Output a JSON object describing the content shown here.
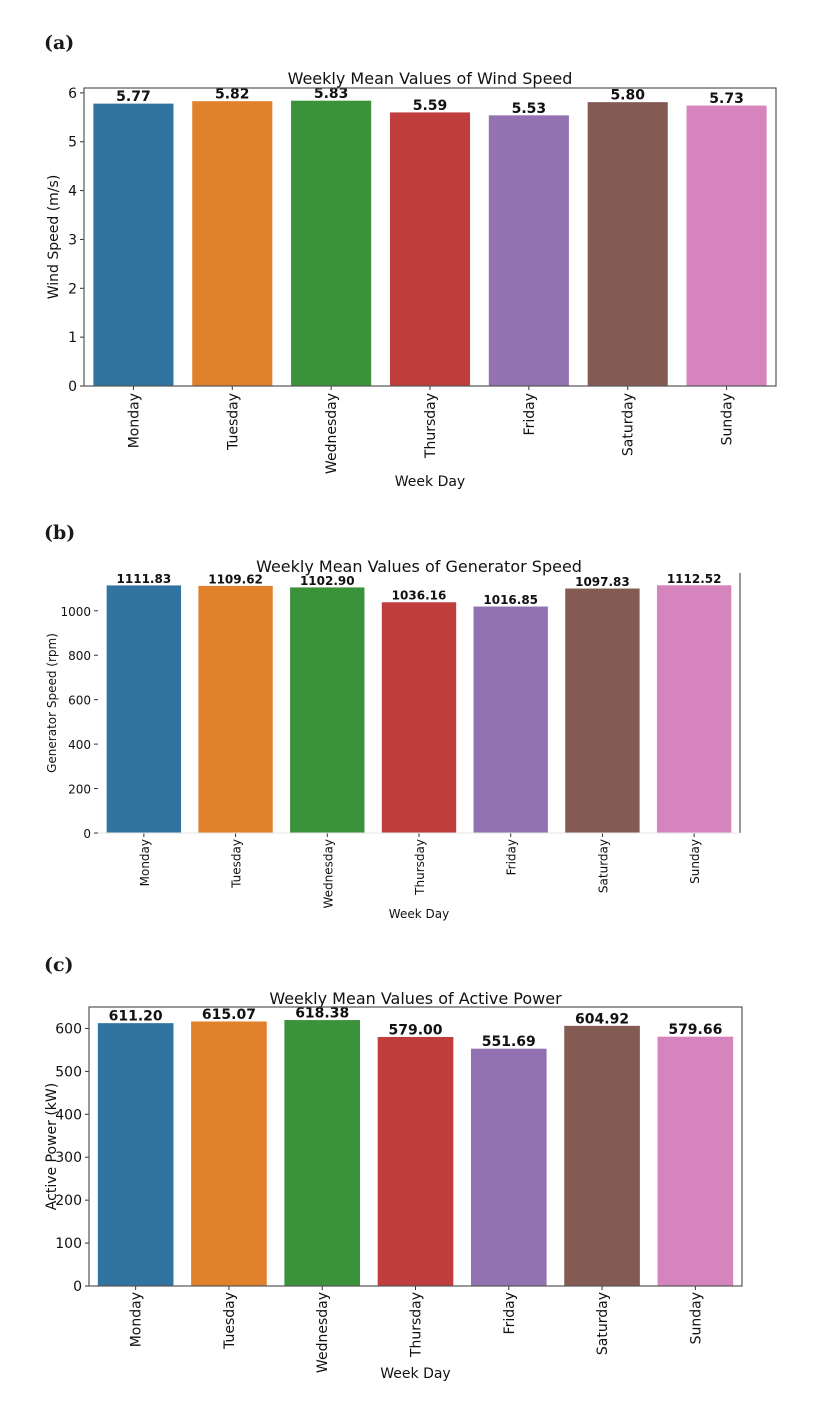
{
  "panels": [
    "(a)",
    "(b)",
    "(c)"
  ],
  "colors": [
    "#3274a1",
    "#e1812c",
    "#3a923a",
    "#c03d3e",
    "#9372b2",
    "#845b53",
    "#d684bd"
  ],
  "chart_data": [
    {
      "type": "bar",
      "panel": "(a)",
      "title": "Weekly Mean Values of Wind Speed",
      "xlabel": "Week Day",
      "ylabel": "Wind Speed (m/s)",
      "categories": [
        "Monday",
        "Tuesday",
        "Wednesday",
        "Thursday",
        "Friday",
        "Saturday",
        "Sunday"
      ],
      "values": [
        5.77,
        5.82,
        5.83,
        5.59,
        5.53,
        5.8,
        5.73
      ],
      "value_labels": [
        "5.77",
        "5.82",
        "5.83",
        "5.59",
        "5.53",
        "5.80",
        "5.73"
      ],
      "yticks": [
        0,
        1,
        2,
        3,
        4,
        5,
        6
      ],
      "ylim": [
        0,
        6.1
      ],
      "grid": false,
      "legend": "none"
    },
    {
      "type": "bar",
      "panel": "(b)",
      "title": "Weekly Mean Values of Generator Speed",
      "xlabel": "Week Day",
      "ylabel": "Generator Speed (rpm)",
      "categories": [
        "Monday",
        "Tuesday",
        "Wednesday",
        "Thursday",
        "Friday",
        "Saturday",
        "Sunday"
      ],
      "values": [
        1111.83,
        1109.62,
        1102.9,
        1036.16,
        1016.85,
        1097.83,
        1112.52
      ],
      "value_labels": [
        "1111.83",
        "1109.62",
        "1102.90",
        "1036.16",
        "1016.85",
        "1097.83",
        "1112.52"
      ],
      "yticks": [
        0,
        200,
        400,
        600,
        800,
        1000
      ],
      "ylim": [
        0,
        1170
      ],
      "grid": false,
      "legend": "none"
    },
    {
      "type": "bar",
      "panel": "(c)",
      "title": "Weekly Mean Values of Active Power",
      "xlabel": "Week Day",
      "ylabel": "Active Power (kW)",
      "categories": [
        "Monday",
        "Tuesday",
        "Wednesday",
        "Thursday",
        "Friday",
        "Saturday",
        "Sunday"
      ],
      "values": [
        611.2,
        615.07,
        618.38,
        579.0,
        551.69,
        604.92,
        579.66
      ],
      "value_labels": [
        "611.20",
        "615.07",
        "618.38",
        "579.00",
        "551.69",
        "604.92",
        "579.66"
      ],
      "yticks": [
        0,
        100,
        200,
        300,
        400,
        500,
        600
      ],
      "ylim": [
        0,
        650
      ],
      "grid": false,
      "legend": "none"
    }
  ]
}
